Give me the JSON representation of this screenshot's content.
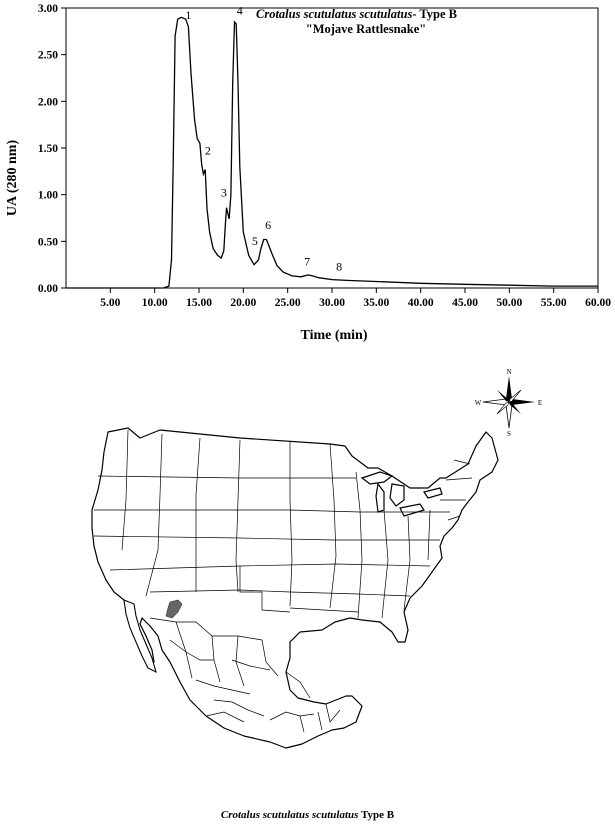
{
  "chart_data": {
    "type": "line",
    "title": {
      "species": "Crotalus scutulatus scutulatus",
      "type_suffix": "- Type B",
      "common_name": "\"Mojave Rattlesnake\""
    },
    "xlabel": "Time (min)",
    "ylabel": "UA (280 nm)",
    "xlim": [
      0,
      60
    ],
    "ylim": [
      0,
      3
    ],
    "x_ticks": [
      "5.00",
      "10.00",
      "15.00",
      "20.00",
      "25.00",
      "30.00",
      "35.00",
      "40.00",
      "45.00",
      "50.00",
      "55.00",
      "60.00"
    ],
    "y_ticks": [
      "0.00",
      "0.50",
      "1.00",
      "1.50",
      "2.00",
      "2.50",
      "3.00"
    ],
    "grid": false,
    "series": [
      {
        "x": [
          0,
          11.0,
          11.6,
          11.9,
          12.1,
          12.3,
          12.6,
          13.0,
          13.5,
          13.8,
          14.1,
          14.5,
          14.8,
          15.1,
          15.3,
          15.5,
          15.7,
          15.9,
          16.2,
          16.6,
          17.1,
          17.5,
          17.8,
          18.0,
          18.1,
          18.2,
          18.4,
          18.6,
          18.8,
          19.0,
          19.2,
          19.4,
          19.6,
          20.0,
          20.6,
          21.2,
          21.7,
          22.0,
          22.3,
          22.6,
          22.9,
          23.3,
          23.8,
          24.5,
          25.5,
          26.5,
          27.3,
          27.8,
          28.5,
          30.0,
          32.0,
          35.0,
          40.0,
          45.0,
          50.0,
          55.0,
          60.0
        ],
        "y": [
          0,
          0,
          0.02,
          0.3,
          1.4,
          2.7,
          2.88,
          2.9,
          2.88,
          2.8,
          2.3,
          1.8,
          1.6,
          1.55,
          1.32,
          1.22,
          1.27,
          0.85,
          0.6,
          0.42,
          0.35,
          0.32,
          0.4,
          0.72,
          0.86,
          0.82,
          0.74,
          1.0,
          2.2,
          2.85,
          2.83,
          2.2,
          1.3,
          0.6,
          0.35,
          0.25,
          0.3,
          0.43,
          0.52,
          0.52,
          0.45,
          0.35,
          0.24,
          0.17,
          0.13,
          0.12,
          0.14,
          0.13,
          0.11,
          0.09,
          0.08,
          0.07,
          0.05,
          0.04,
          0.03,
          0.02,
          0.02
        ]
      }
    ],
    "peak_labels": [
      {
        "label": "1",
        "x": 13.8,
        "y": 2.88
      },
      {
        "label": "2",
        "x": 16.0,
        "y": 1.43
      },
      {
        "label": "3",
        "x": 17.8,
        "y": 0.98
      },
      {
        "label": "4",
        "x": 19.6,
        "y": 2.93
      },
      {
        "label": "5",
        "x": 21.3,
        "y": 0.46
      },
      {
        "label": "6",
        "x": 22.8,
        "y": 0.63
      },
      {
        "label": "7",
        "x": 27.2,
        "y": 0.24
      },
      {
        "label": "8",
        "x": 30.8,
        "y": 0.19
      }
    ]
  },
  "map": {
    "compass": {
      "n": "N",
      "e": "E",
      "s": "S",
      "w": "W"
    },
    "caption_species": "Crotalus scutulatus scutulatus",
    "caption_type": "Type B",
    "highlight_color": "#666666"
  }
}
